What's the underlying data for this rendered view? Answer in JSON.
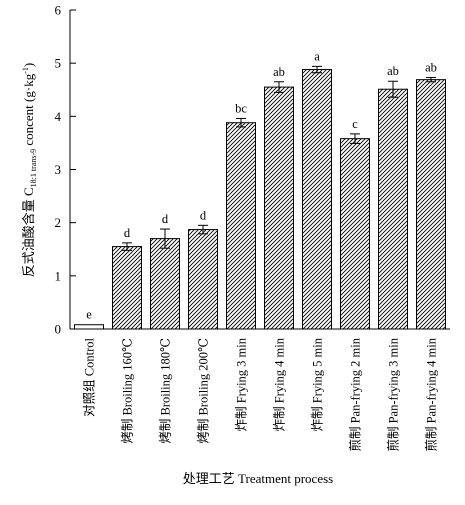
{
  "chart_data": {
    "type": "bar",
    "title": "",
    "xlabel": "处理工艺 Treatment process",
    "ylabel": {
      "main": "反式油酸含量 C",
      "sub": "18:1 trans-9",
      "mid": " concent (g·kg",
      "sup": "-1",
      "end": ")"
    },
    "ylim": [
      0,
      6
    ],
    "yticks": [
      0,
      1,
      2,
      3,
      4,
      5,
      6
    ],
    "categories": [
      "对照组 Control",
      "烤制 Broiling 160℃",
      "烤制 Broiling 180℃",
      "烤制 Broiling 200℃",
      "炸制 Frying 3 min",
      "炸制 Frying 4 min",
      "炸制 Frying 5 min",
      "煎制 Pan-frying 2 min",
      "煎制 Pan-frying 3 min",
      "煎制 Pan-frying 4 min"
    ],
    "values": [
      0.08,
      1.55,
      1.7,
      1.87,
      3.88,
      4.55,
      4.88,
      3.58,
      4.51,
      4.69
    ],
    "errors": [
      0,
      0.07,
      0.18,
      0.08,
      0.08,
      0.1,
      0.06,
      0.09,
      0.15,
      0.04
    ],
    "significance": [
      "e",
      "d",
      "d",
      "d",
      "bc",
      "ab",
      "a",
      "c",
      "ab",
      "ab"
    ],
    "fill_pattern": "diagonal-hatch",
    "control_fill": "plain",
    "bar_color": "#000000",
    "grid": false,
    "legend": "none"
  }
}
